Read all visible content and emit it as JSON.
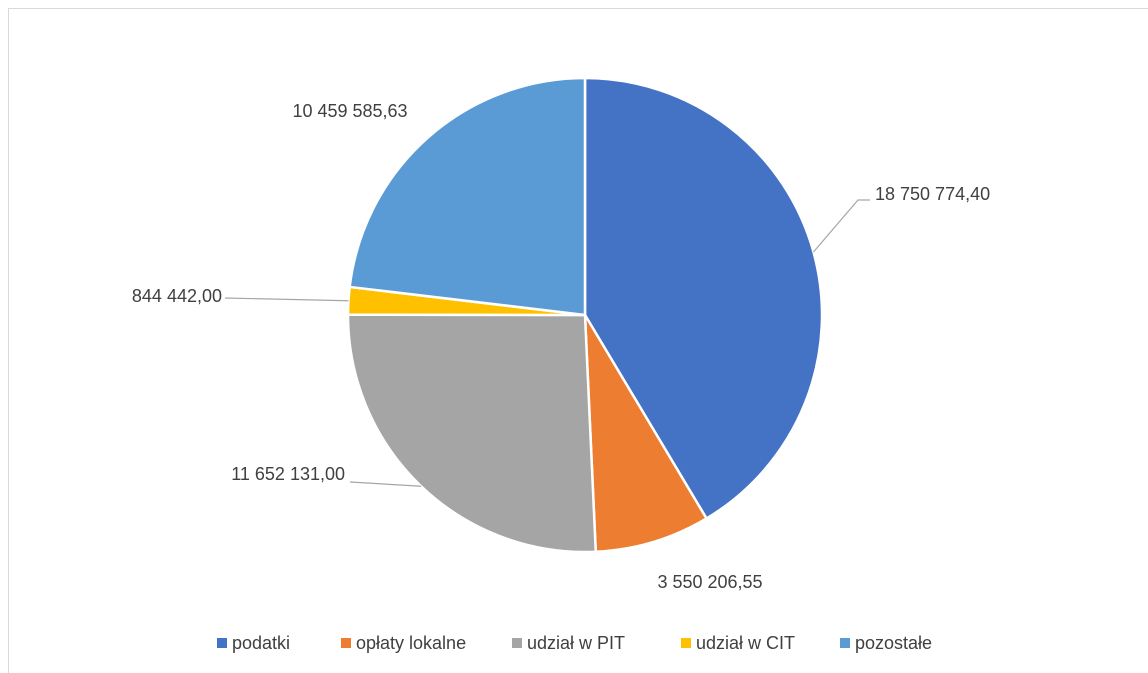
{
  "chart_data": {
    "type": "pie",
    "categories": [
      "podatki",
      "opłaty lokalne",
      "udział w PIT",
      "udział w CIT",
      "pozostałe"
    ],
    "values": [
      18750774.4,
      3550206.55,
      11652131.0,
      844442.0,
      10459585.63
    ],
    "value_labels": [
      "18 750 774,40",
      "3 550 206,55",
      "11 652 131,00",
      "844 442,00",
      "10 459 585,63"
    ],
    "colors": [
      "#4472c4",
      "#ed7d31",
      "#a5a5a5",
      "#ffc000",
      "#5b9bd5"
    ],
    "legend": "bottom"
  }
}
